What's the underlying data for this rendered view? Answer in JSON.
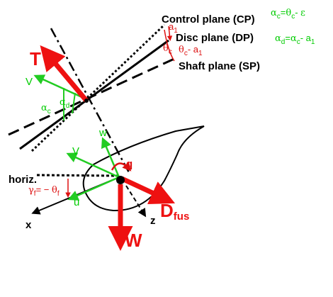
{
  "labels": {
    "control_plane": "Control plane (CP)",
    "disc_plane": "Disc plane (DP)",
    "shaft_plane": "Shaft plane (SP)",
    "horiz": "horiz.",
    "x_axis": "x",
    "z_axis": "z",
    "u": "u",
    "w": "w",
    "q": "q",
    "V_upper": "V",
    "V_lower": "V"
  },
  "forces": {
    "thrust": "T",
    "weight": "W",
    "drag_main": "D",
    "drag_sub": "fus"
  },
  "symbols": {
    "alpha": "α",
    "theta": "θ",
    "gamma": "γ",
    "epsilon": "ε",
    "c": "c",
    "d": "d",
    "f": "f",
    "one": "1"
  },
  "equations": {
    "alpha_c_prefix": "=",
    "alpha_c_minus": "- ",
    "alpha_d_prefix": "=",
    "alpha_d_minus": "- a",
    "gamma_f_eq": "= − ",
    "theta_c_minus_a1": "- a"
  },
  "colors": {
    "red": "#ee1111",
    "green": "#22cc22",
    "black": "#000000"
  }
}
